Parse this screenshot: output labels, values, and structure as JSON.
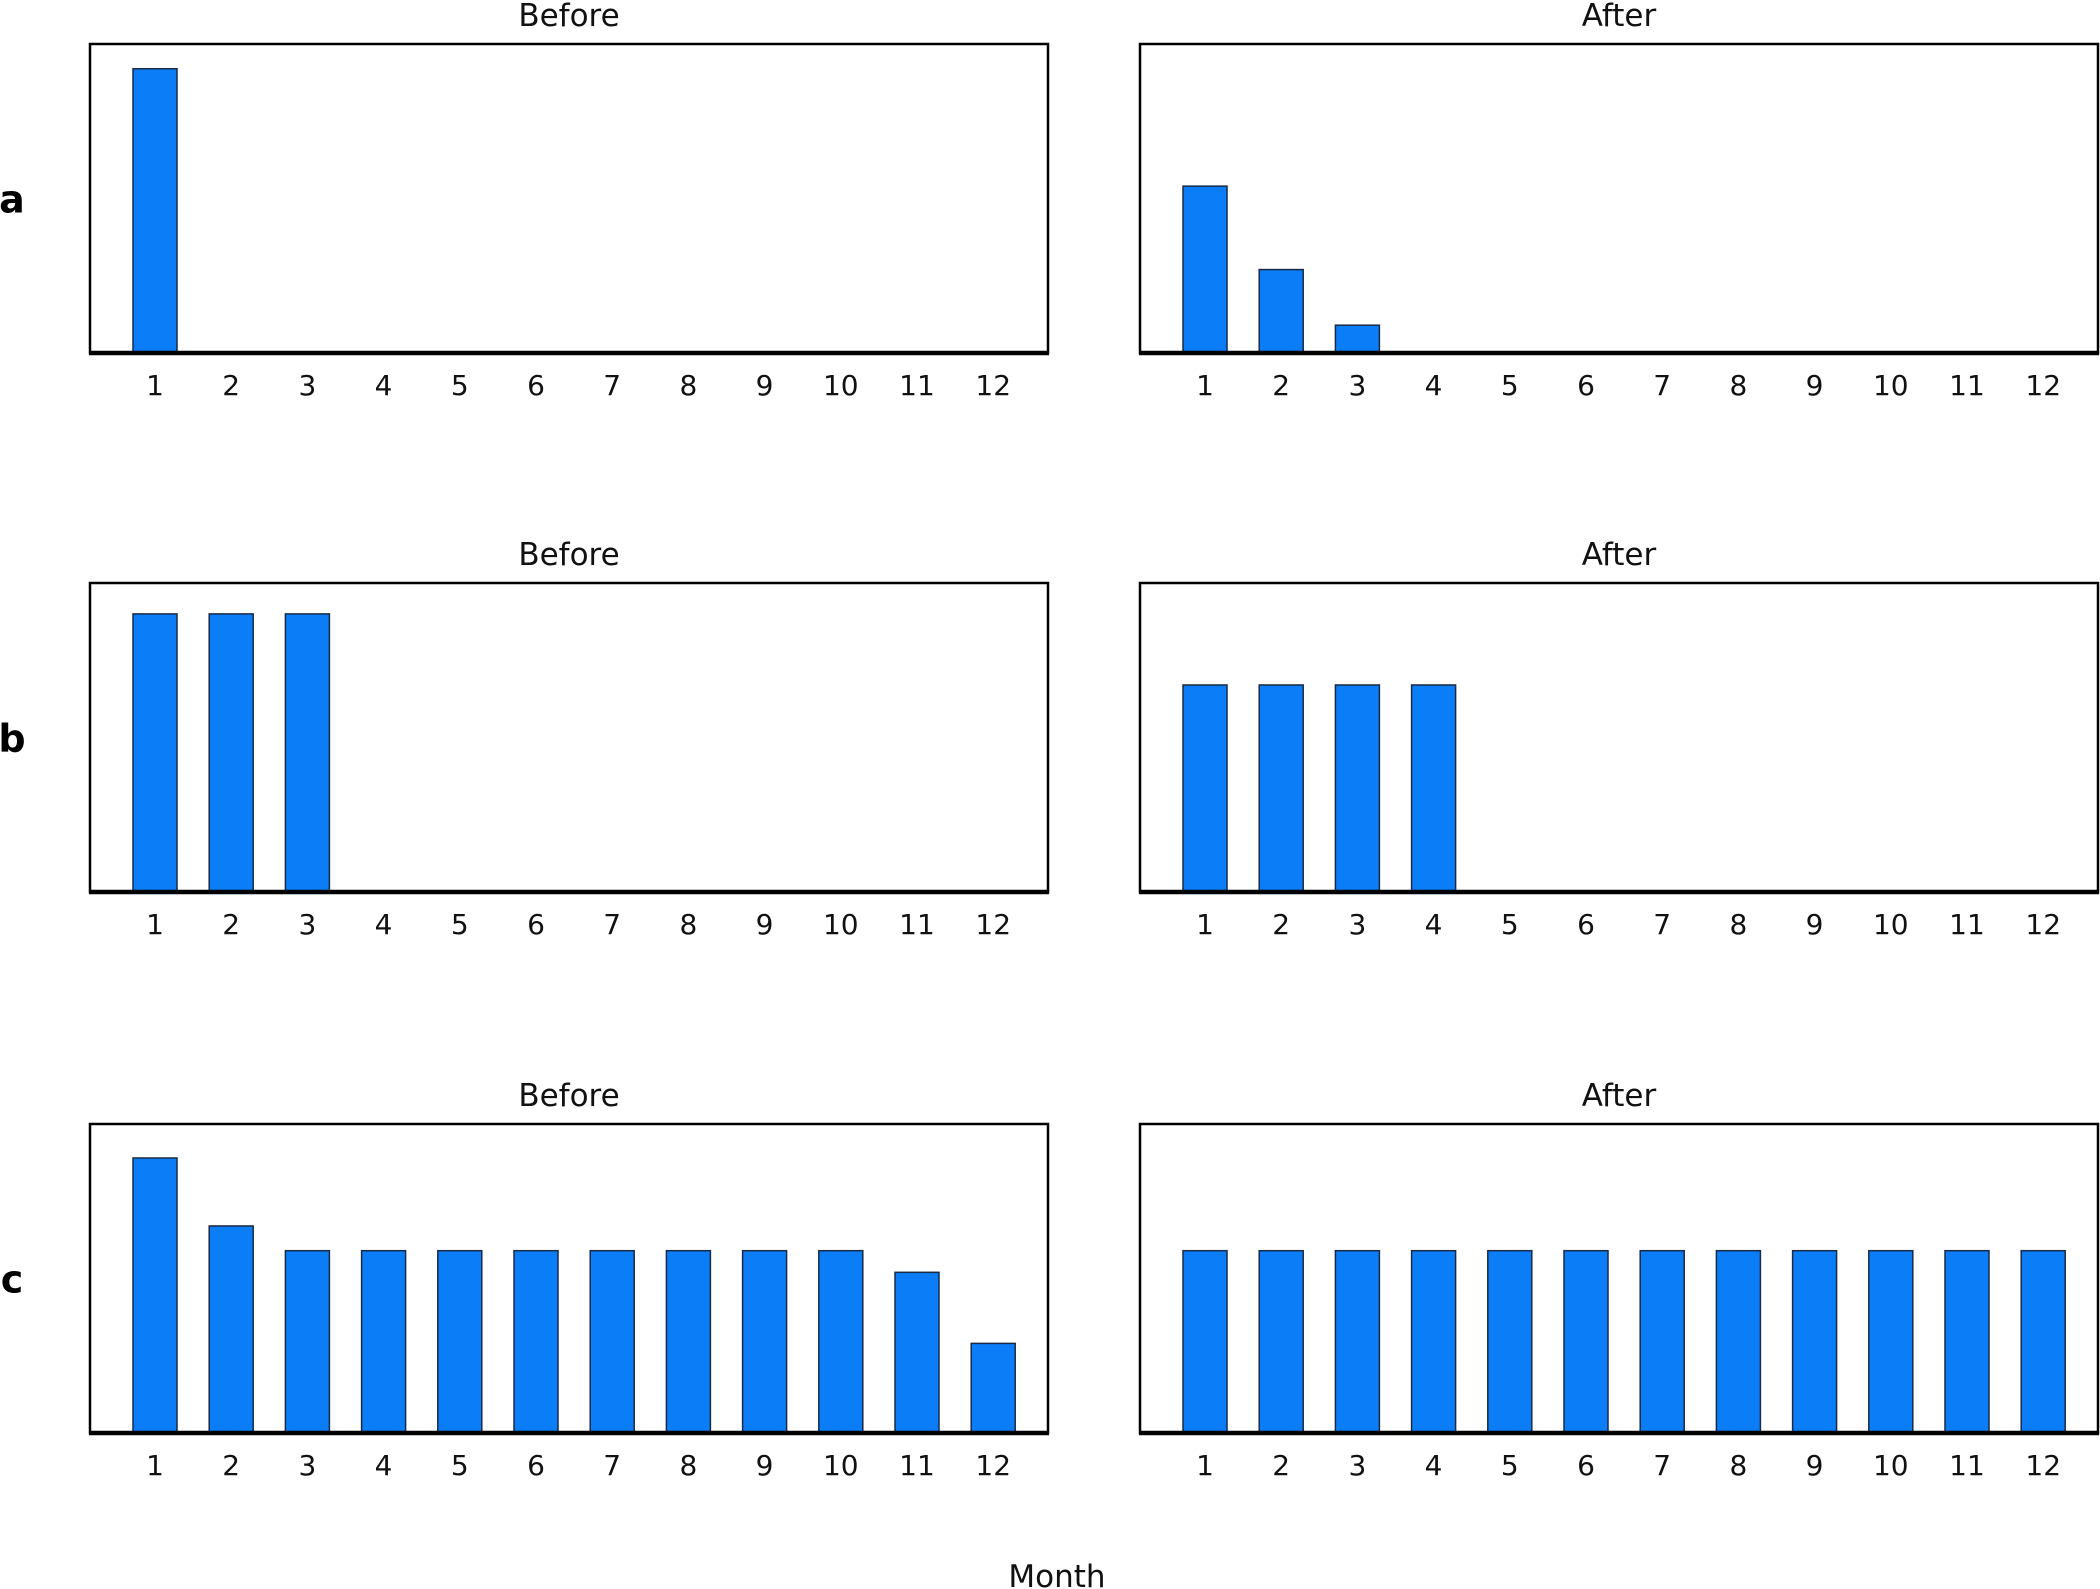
{
  "colors": {
    "bar": "#0a7df7",
    "bar_outline": "#1a2a44",
    "axis": "#000000"
  },
  "figure": {
    "xlabel": "Month"
  },
  "chart_data": [
    {
      "row": "a",
      "panel": "before",
      "type": "bar",
      "title": "Before",
      "xlabel": "",
      "ylabel": "",
      "categories": [
        "1",
        "2",
        "3",
        "4",
        "5",
        "6",
        "7",
        "8",
        "9",
        "10",
        "11",
        "12"
      ],
      "values": [
        0.92,
        0,
        0,
        0,
        0,
        0,
        0,
        0,
        0,
        0,
        0,
        0
      ],
      "ylim": [
        0,
        1
      ],
      "grid": false,
      "legend": "none"
    },
    {
      "row": "a",
      "panel": "after",
      "type": "bar",
      "title": "After",
      "xlabel": "",
      "ylabel": "",
      "categories": [
        "1",
        "2",
        "3",
        "4",
        "5",
        "6",
        "7",
        "8",
        "9",
        "10",
        "11",
        "12"
      ],
      "values": [
        0.54,
        0.27,
        0.09,
        0,
        0,
        0,
        0,
        0,
        0,
        0,
        0,
        0
      ],
      "ylim": [
        0,
        1
      ],
      "grid": false,
      "legend": "none"
    },
    {
      "row": "b",
      "panel": "before",
      "type": "bar",
      "title": "Before",
      "xlabel": "",
      "ylabel": "",
      "categories": [
        "1",
        "2",
        "3",
        "4",
        "5",
        "6",
        "7",
        "8",
        "9",
        "10",
        "11",
        "12"
      ],
      "values": [
        0.9,
        0.9,
        0.9,
        0,
        0,
        0,
        0,
        0,
        0,
        0,
        0,
        0
      ],
      "ylim": [
        0,
        1
      ],
      "grid": false,
      "legend": "none"
    },
    {
      "row": "b",
      "panel": "after",
      "type": "bar",
      "title": "After",
      "xlabel": "",
      "ylabel": "",
      "categories": [
        "1",
        "2",
        "3",
        "4",
        "5",
        "6",
        "7",
        "8",
        "9",
        "10",
        "11",
        "12"
      ],
      "values": [
        0.67,
        0.67,
        0.67,
        0.67,
        0,
        0,
        0,
        0,
        0,
        0,
        0,
        0
      ],
      "ylim": [
        0,
        1
      ],
      "grid": false,
      "legend": "none"
    },
    {
      "row": "c",
      "panel": "before",
      "type": "bar",
      "title": "Before",
      "xlabel": "",
      "ylabel": "",
      "categories": [
        "1",
        "2",
        "3",
        "4",
        "5",
        "6",
        "7",
        "8",
        "9",
        "10",
        "11",
        "12"
      ],
      "values": [
        0.89,
        0.67,
        0.59,
        0.59,
        0.59,
        0.59,
        0.59,
        0.59,
        0.59,
        0.59,
        0.52,
        0.29
      ],
      "ylim": [
        0,
        1
      ],
      "grid": false,
      "legend": "none"
    },
    {
      "row": "c",
      "panel": "after",
      "type": "bar",
      "title": "After",
      "xlabel": "",
      "ylabel": "",
      "categories": [
        "1",
        "2",
        "3",
        "4",
        "5",
        "6",
        "7",
        "8",
        "9",
        "10",
        "11",
        "12"
      ],
      "values": [
        0.59,
        0.59,
        0.59,
        0.59,
        0.59,
        0.59,
        0.59,
        0.59,
        0.59,
        0.59,
        0.59,
        0.59
      ],
      "ylim": [
        0,
        1
      ],
      "grid": false,
      "legend": "none"
    }
  ]
}
